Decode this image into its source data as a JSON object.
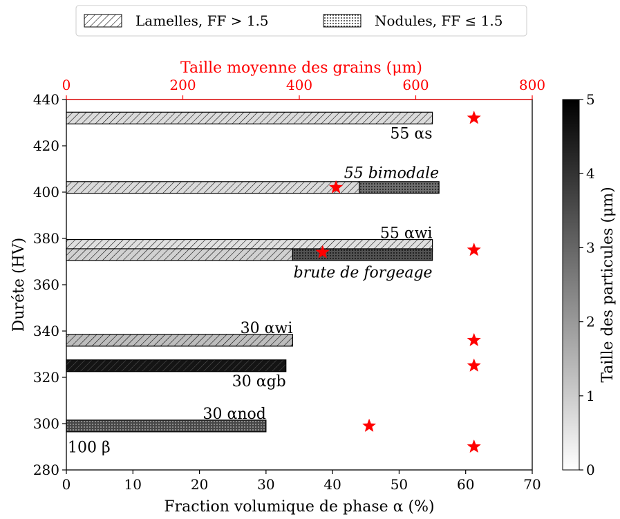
{
  "chart_data": {
    "type": "bar",
    "orientation": "horizontal",
    "xlabel": "Fraction volumique de phase α (%)",
    "ylabel": "Duréte (HV)",
    "xlim": [
      0,
      70
    ],
    "ylim": [
      280,
      440
    ],
    "xticks": [
      "0",
      "10",
      "20",
      "30",
      "40",
      "50",
      "60",
      "70"
    ],
    "yticks": [
      "280",
      "300",
      "320",
      "340",
      "360",
      "380",
      "400",
      "420",
      "440"
    ],
    "top_axis": {
      "label": "Taille moyenne des grains (μm)",
      "xlim": [
        0,
        800
      ],
      "ticks": [
        "0",
        "200",
        "400",
        "600",
        "800"
      ],
      "color": "#ff0000"
    },
    "legend": {
      "placement": "top",
      "entries": [
        {
          "label": "Lamelles, FF > 1.5",
          "pattern": "hatch"
        },
        {
          "label": "Nodules, FF ≤ 1.5",
          "pattern": "dots"
        }
      ]
    },
    "colorbar": {
      "label": "Taille des particules (μm)",
      "range": [
        0,
        5
      ],
      "ticks": [
        "0",
        "1",
        "2",
        "3",
        "4",
        "5"
      ]
    },
    "bars": [
      {
        "hv": 432,
        "segments": [
          {
            "from": 0,
            "to": 55,
            "pattern": "hatch",
            "particle_size": 0.7
          }
        ]
      },
      {
        "hv": 402,
        "segments": [
          {
            "from": 0,
            "to": 44,
            "pattern": "hatch",
            "particle_size": 0.7
          },
          {
            "from": 44,
            "to": 56,
            "pattern": "dots",
            "particle_size": 2.8
          }
        ]
      },
      {
        "hv": 377,
        "segments": [
          {
            "from": 0,
            "to": 55,
            "pattern": "hatch",
            "particle_size": 0.6
          }
        ]
      },
      {
        "hv": 373,
        "segments": [
          {
            "from": 0,
            "to": 34,
            "pattern": "hatch",
            "particle_size": 0.9
          },
          {
            "from": 34,
            "to": 55,
            "pattern": "dots",
            "particle_size": 3.4
          }
        ]
      },
      {
        "hv": 336,
        "segments": [
          {
            "from": 0,
            "to": 34,
            "pattern": "hatch",
            "particle_size": 1.3
          }
        ]
      },
      {
        "hv": 325,
        "segments": [
          {
            "from": 0,
            "to": 33,
            "pattern": "hatch",
            "particle_size": 4.6
          }
        ]
      },
      {
        "hv": 299,
        "segments": [
          {
            "from": 0,
            "to": 30,
            "pattern": "dots",
            "particle_size": 3.6
          }
        ]
      }
    ],
    "bar_labels": [
      {
        "text": "55 αs",
        "x": 55,
        "hv": 425.5,
        "anchor": "end"
      },
      {
        "text": "55 bimodale",
        "x": 56,
        "hv": 408.5,
        "anchor": "end"
      },
      {
        "text": "55 αwi",
        "x": 55,
        "hv": 382.5,
        "anchor": "end"
      },
      {
        "text": "brute de forgeage",
        "x": 55,
        "hv": 365.5,
        "anchor": "end"
      },
      {
        "text": "30 αwi",
        "x": 34,
        "hv": 341.5,
        "anchor": "end"
      },
      {
        "text": "30 αgb",
        "x": 33,
        "hv": 318.5,
        "anchor": "end"
      },
      {
        "text": "30 αnod",
        "x": 30,
        "hv": 304.5,
        "anchor": "end"
      },
      {
        "text": "100 β",
        "x": 0,
        "hv": 290,
        "anchor": "start"
      }
    ],
    "grain_size_points": [
      {
        "grain_size_um": 700,
        "hv": 432
      },
      {
        "grain_size_um": 463,
        "hv": 402
      },
      {
        "grain_size_um": 700,
        "hv": 375
      },
      {
        "grain_size_um": 440,
        "hv": 374
      },
      {
        "grain_size_um": 700,
        "hv": 336
      },
      {
        "grain_size_um": 700,
        "hv": 325
      },
      {
        "grain_size_um": 520,
        "hv": 299
      },
      {
        "grain_size_um": 700,
        "hv": 290
      }
    ]
  }
}
